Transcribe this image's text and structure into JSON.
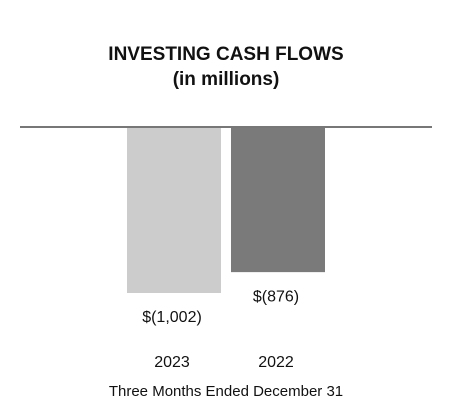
{
  "chart_data": {
    "type": "bar",
    "title": "INVESTING CASH FLOWS",
    "subtitle": "(in millions)",
    "x_label": "Three Months Ended December 31",
    "categories": [
      "2023",
      "2022"
    ],
    "values": [
      -1002,
      -876
    ],
    "value_labels": [
      "$(1,002)",
      "$(876)"
    ],
    "colors": [
      "#cccccc",
      "#7a7a7a"
    ]
  }
}
